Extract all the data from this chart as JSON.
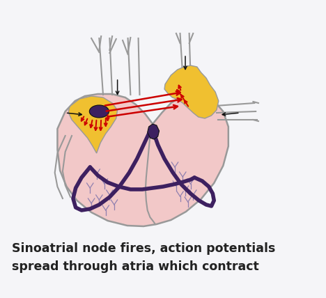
{
  "title_line1": "Sinoatrial node fires, action potentials",
  "title_line2": "spread through atria which contract",
  "bg_color": "#f5f5f8",
  "heart_fill": "#f2c8c8",
  "heart_outline": "#999999",
  "yellow_fill": "#f0c030",
  "purple_fill": "#3d2060",
  "purple_path": "#3d2060",
  "red_arrow_color": "#cc0000",
  "black_color": "#111111",
  "text_color": "#222222",
  "font_size_caption": 12.5,
  "fiber_color": "#9080b0"
}
